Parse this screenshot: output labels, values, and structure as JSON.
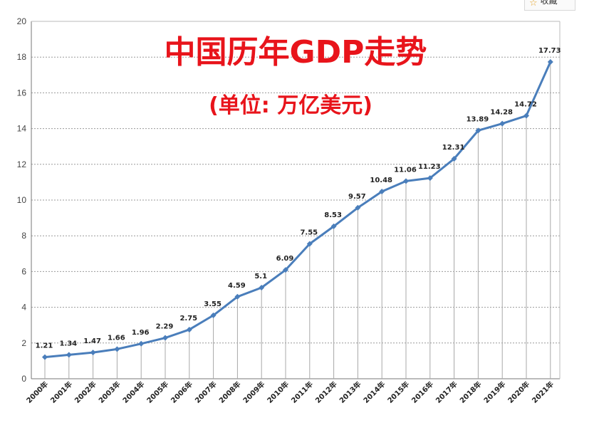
{
  "favorite": {
    "label": "收藏",
    "icon": "star-icon"
  },
  "chart_data": {
    "type": "line",
    "title": "中国历年GDP走势",
    "subtitle": "(单位: 万亿美元)",
    "xlabel": "",
    "ylabel": "",
    "ylim": [
      0,
      20
    ],
    "yticks": [
      "0",
      "2",
      "4",
      "6",
      "8",
      "10",
      "12",
      "14",
      "16",
      "18",
      "20"
    ],
    "grid": true,
    "categories": [
      "2000年",
      "2001年",
      "2002年",
      "2003年",
      "2004年",
      "2005年",
      "2006年",
      "2007年",
      "2008年",
      "2009年",
      "2010年",
      "2011年",
      "2012年",
      "2013年",
      "2014年",
      "2015年",
      "2016年",
      "2017年",
      "2018年",
      "2019年",
      "2020年",
      "2021年"
    ],
    "values": [
      1.21,
      1.34,
      1.47,
      1.66,
      1.96,
      2.29,
      2.75,
      3.55,
      4.59,
      5.1,
      6.09,
      7.55,
      8.53,
      9.57,
      10.48,
      11.06,
      11.23,
      12.31,
      13.89,
      14.28,
      14.72,
      17.73
    ],
    "labels": [
      "1.21",
      "1.34",
      "1.47",
      "1.66",
      "1.96",
      "2.29",
      "2.75",
      "3.55",
      "4.59",
      "5.1",
      "6.09",
      "7.55",
      "8.53",
      "9.57",
      "10.48",
      "11.06",
      "11.23",
      "12.31",
      "13.89",
      "14.28",
      "14.72",
      "17.73"
    ],
    "line_color": "#4a7ebb",
    "title_color": "#e8141b"
  }
}
